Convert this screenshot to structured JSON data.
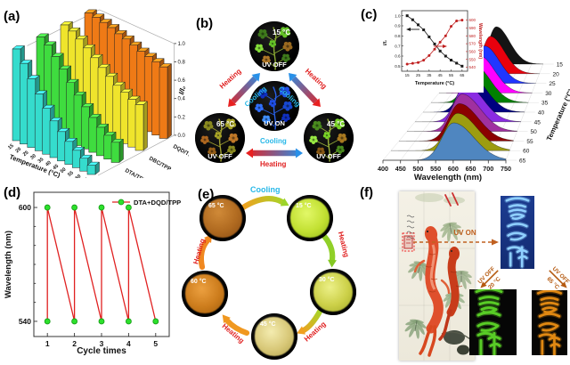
{
  "panels": {
    "a": {
      "label": "(a)"
    },
    "b": {
      "label": "(b)",
      "states": {
        "top": {
          "temp": "15 °C",
          "uv": "UV OFF"
        },
        "left": {
          "temp": "65 °C",
          "uv": "UV OFF"
        },
        "right": {
          "temp": "45 °C",
          "uv": "UV OFF"
        },
        "center": {
          "uv": "UV ON"
        }
      },
      "arrow_labels": {
        "heating": "Heating",
        "cooling": "Cooling"
      },
      "colors": {
        "heating": "#e02020",
        "cooling": "#28b8e8"
      }
    },
    "c": {
      "label": "(c)"
    },
    "d": {
      "label": "(d)"
    },
    "e": {
      "label": "(e)",
      "steps": [
        {
          "temp": "65 °C"
        },
        {
          "temp": "15 °C"
        },
        {
          "temp": "30 °C"
        },
        {
          "temp": "45 °C"
        },
        {
          "temp": "60 °C"
        }
      ],
      "arrows": [
        {
          "label": "Cooling"
        },
        {
          "label": "Heating"
        },
        {
          "label": "Heating"
        },
        {
          "label": "Heating"
        },
        {
          "label": "Heating"
        }
      ]
    },
    "f": {
      "label": "(f)",
      "uv_on": "UV ON",
      "uv_off": "UV OFF",
      "temp_low": "20 °C",
      "temp_high": "65 °C",
      "characters": "雷云祥"
    }
  },
  "chart_data": [
    {
      "id": "a",
      "type": "bar",
      "subtype": "bar3d",
      "xlabel": "Temperature (°C)",
      "zlabel": "I/I₀",
      "categories": [
        15,
        20,
        25,
        30,
        35,
        40,
        45,
        50,
        55,
        60,
        65
      ],
      "zticks": [
        0.0,
        0.2,
        0.4,
        0.6,
        0.8,
        1.0
      ],
      "zlim": [
        0,
        1.0
      ],
      "series": [
        {
          "name": "FDA/TPP",
          "color": "#35dccd",
          "values": [
            1.0,
            0.88,
            0.75,
            0.62,
            0.5,
            0.4,
            0.32,
            0.25,
            0.19,
            0.14,
            0.1
          ]
        },
        {
          "name": "DTA/TPP",
          "color": "#3fdc3f",
          "values": [
            1.0,
            0.95,
            0.86,
            0.76,
            0.65,
            0.55,
            0.46,
            0.38,
            0.31,
            0.26,
            0.22
          ]
        },
        {
          "name": "DBC/TPP",
          "color": "#efe42c",
          "values": [
            1.0,
            0.97,
            0.92,
            0.86,
            0.79,
            0.72,
            0.66,
            0.6,
            0.56,
            0.52,
            0.5
          ]
        },
        {
          "name": "DQD/TPP",
          "color": "#ef7a16",
          "values": [
            1.0,
            0.99,
            0.97,
            0.95,
            0.92,
            0.9,
            0.87,
            0.84,
            0.82,
            0.8,
            0.78
          ]
        }
      ]
    },
    {
      "id": "c",
      "type": "area",
      "subtype": "waterfall3d",
      "xlabel": "Wavelength (nm)",
      "xticks": [
        400,
        450,
        500,
        550,
        600,
        650,
        700,
        750
      ],
      "xlim": [
        400,
        750
      ],
      "depth_label": "Temperature (°C)",
      "temperatures": [
        15,
        20,
        25,
        30,
        35,
        40,
        45,
        50,
        55,
        60,
        65
      ],
      "peak_wavelengths": [
        545,
        546,
        548,
        551,
        555,
        560,
        567,
        575,
        585,
        596,
        601
      ],
      "colors": [
        "#141414",
        "#e8000d",
        "#2036ff",
        "#ff00ff",
        "#008000",
        "#000080",
        "#8a2be2",
        "#a030a0",
        "#8b0000",
        "#9c9c10",
        "#4f86c0"
      ]
    },
    {
      "id": "c-inset",
      "type": "line",
      "xlabel": "Temperature (°C)",
      "x": [
        15,
        20,
        25,
        30,
        35,
        40,
        45,
        50,
        55,
        60,
        65
      ],
      "xticks": [
        15,
        25,
        35,
        45,
        55,
        65
      ],
      "left_ylabel": "I/I₀",
      "right_ylabel": "Wavelength (nm)",
      "left_ticks": [
        0.5,
        0.6,
        0.7,
        0.8,
        0.9,
        1.0
      ],
      "left_ylim": [
        0.45,
        1.05
      ],
      "right_ticks": [
        540,
        550,
        560,
        570,
        580,
        590,
        600
      ],
      "right_ylim": [
        535,
        612
      ],
      "series": [
        {
          "name": "I/I₀",
          "axis": "left",
          "color": "#1a1a1a",
          "marker": "square",
          "values": [
            1.0,
            0.96,
            0.91,
            0.86,
            0.79,
            0.72,
            0.65,
            0.6,
            0.56,
            0.53,
            0.5
          ]
        },
        {
          "name": "Wavelength (nm)",
          "axis": "right",
          "color": "#c02020",
          "marker": "circle",
          "values": [
            544,
            545,
            546,
            549,
            555,
            563,
            572,
            580,
            592,
            599,
            600
          ]
        }
      ]
    },
    {
      "id": "d",
      "type": "line",
      "xlabel": "Cycle times",
      "ylabel": "Wavelength (nm)",
      "legend": "DTA+DQD/TPP",
      "line_color": "#e02020",
      "marker_color": "#2ce02c",
      "x": [
        1,
        1,
        2,
        2,
        3,
        3,
        4,
        4,
        5
      ],
      "y": [
        540,
        600,
        540,
        600,
        540,
        600,
        540,
        600,
        540
      ],
      "xticks": [
        1,
        2,
        3,
        4,
        5
      ],
      "yticks": [
        540,
        600
      ],
      "xlim": [
        0.5,
        5.5
      ],
      "ylim": [
        532,
        608
      ]
    }
  ]
}
